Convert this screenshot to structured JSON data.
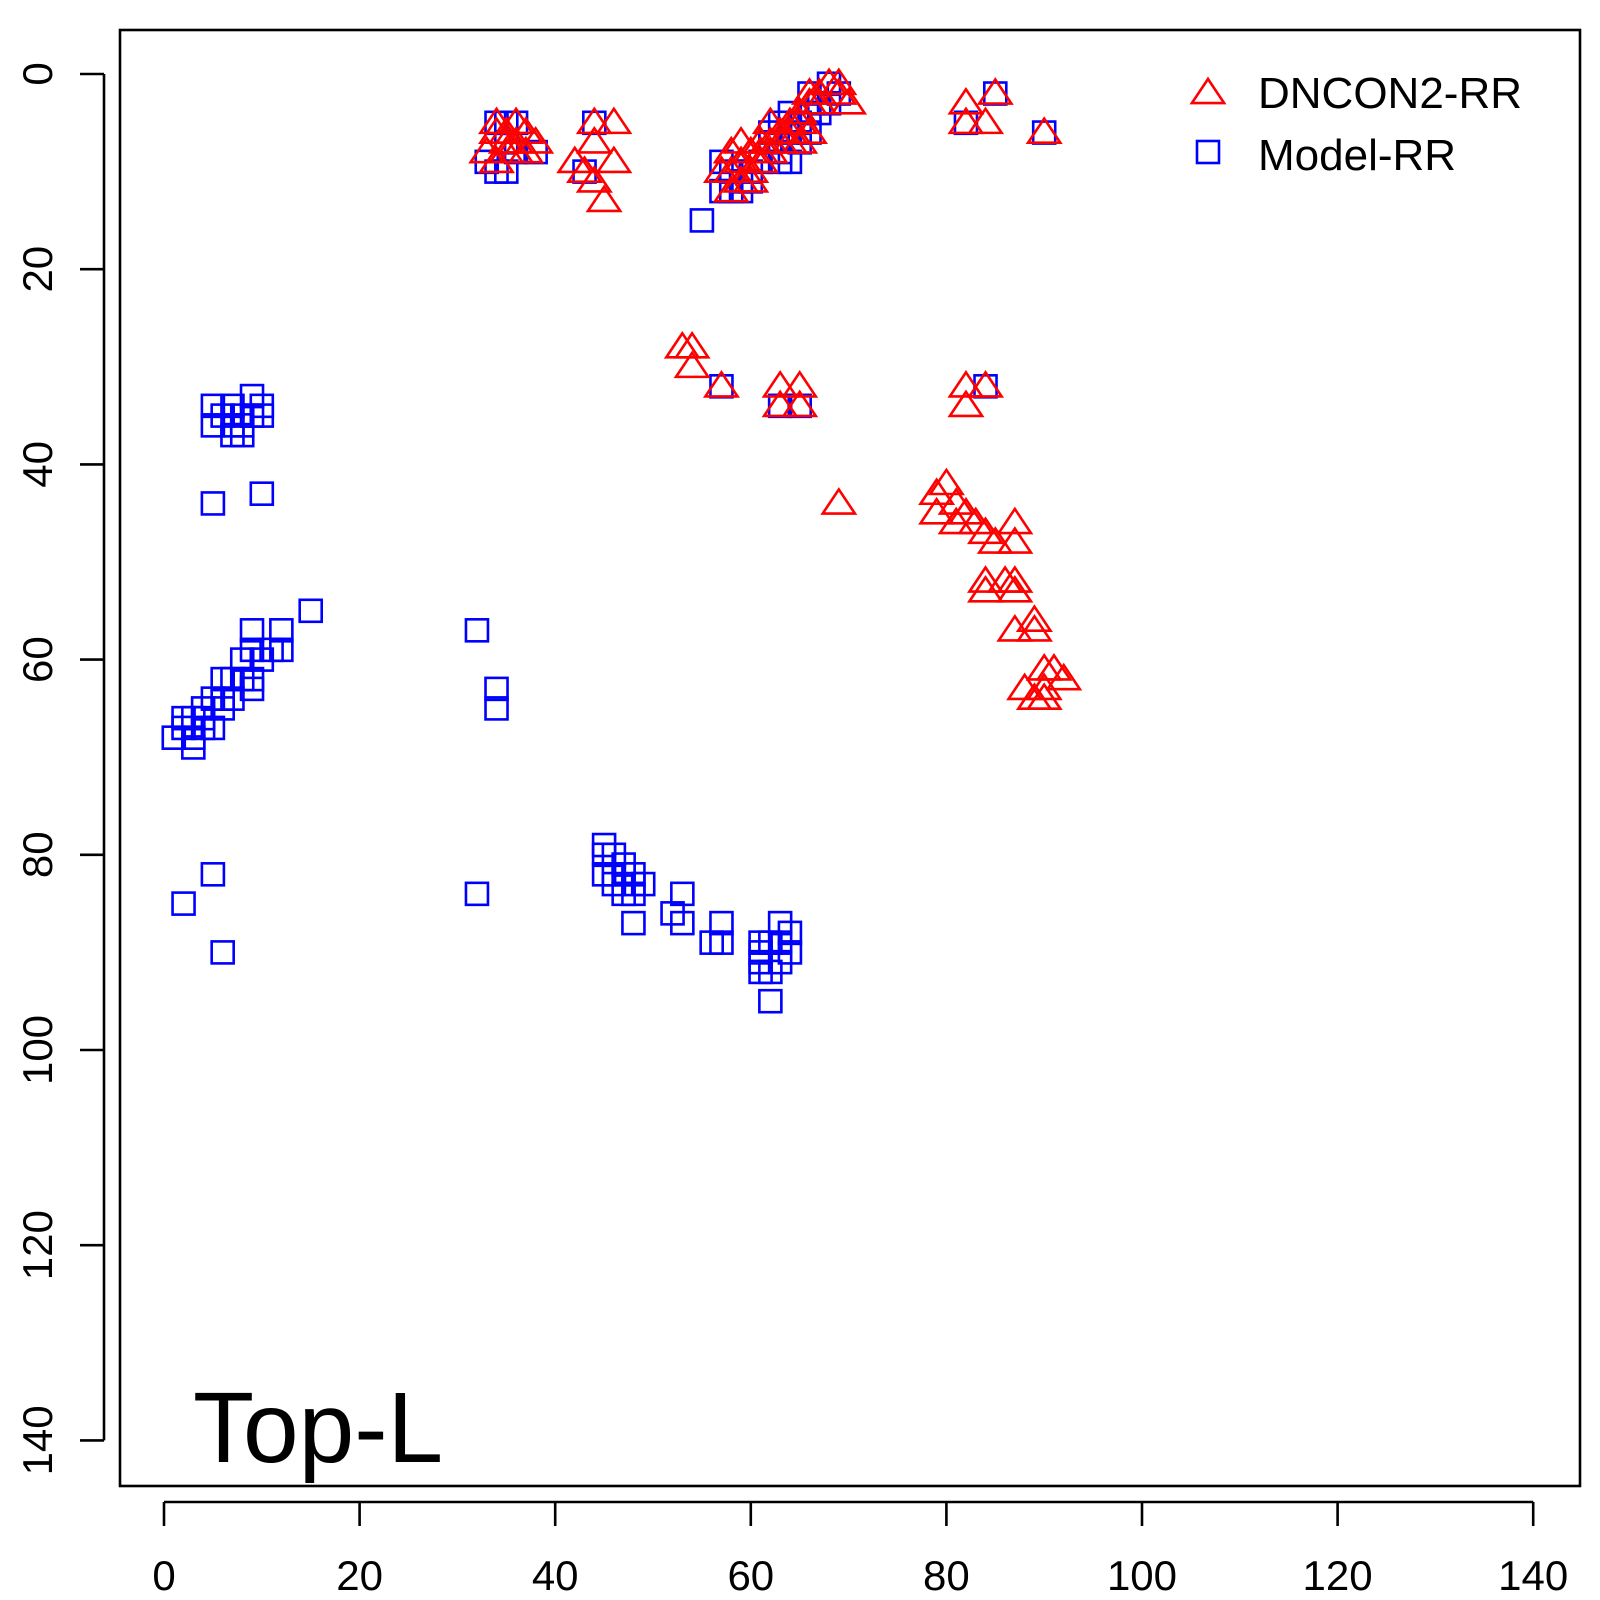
{
  "chart_data": {
    "type": "scatter",
    "title": "",
    "xlabel": "",
    "ylabel": "",
    "annotation": "Top-L",
    "xlim": [
      -2,
      144
    ],
    "ylim": [
      145,
      -6.5
    ],
    "y_reversed": true,
    "grid": false,
    "legend_position": "top-right",
    "x_ticks": [
      "0",
      "20",
      "40",
      "60",
      "80",
      "100",
      "120",
      "140"
    ],
    "y_ticks": [
      "0",
      "20",
      "40",
      "60",
      "80",
      "100",
      "120",
      "140"
    ],
    "series": [
      {
        "name": "DNCON2-RR",
        "marker": "triangle",
        "color": "#ff0000",
        "points": [
          [
            34,
            5
          ],
          [
            35,
            6
          ],
          [
            36,
            5
          ],
          [
            33,
            8
          ],
          [
            34,
            9
          ],
          [
            35,
            8
          ],
          [
            36,
            7
          ],
          [
            37,
            6
          ],
          [
            38,
            7
          ],
          [
            34,
            6
          ],
          [
            35,
            7
          ],
          [
            36,
            8
          ],
          [
            37,
            8
          ],
          [
            44,
            5
          ],
          [
            46,
            5
          ],
          [
            44,
            7
          ],
          [
            42,
            9
          ],
          [
            43,
            10
          ],
          [
            44,
            11
          ],
          [
            46,
            9
          ],
          [
            45,
            13
          ],
          [
            57,
            10
          ],
          [
            58,
            10
          ],
          [
            58,
            8
          ],
          [
            59,
            9
          ],
          [
            59,
            7
          ],
          [
            60,
            8
          ],
          [
            61,
            9
          ],
          [
            60,
            10
          ],
          [
            58,
            12
          ],
          [
            61,
            7
          ],
          [
            62,
            7
          ],
          [
            62,
            8
          ],
          [
            63,
            6
          ],
          [
            63,
            7
          ],
          [
            64,
            5
          ],
          [
            64,
            6
          ],
          [
            65,
            4
          ],
          [
            65,
            5
          ],
          [
            66,
            3
          ],
          [
            66,
            2
          ],
          [
            67,
            2
          ],
          [
            67,
            3
          ],
          [
            68,
            1
          ],
          [
            69,
            1
          ],
          [
            69,
            2
          ],
          [
            70,
            3
          ],
          [
            64,
            7
          ],
          [
            65,
            7
          ],
          [
            66,
            6
          ],
          [
            62,
            5
          ],
          [
            61,
            8
          ],
          [
            60,
            11
          ],
          [
            59,
            11
          ],
          [
            82,
            3
          ],
          [
            82,
            5
          ],
          [
            84,
            5
          ],
          [
            85,
            2
          ],
          [
            90,
            6
          ],
          [
            53,
            28
          ],
          [
            54,
            28
          ],
          [
            54,
            30
          ],
          [
            57,
            32
          ],
          [
            63,
            32
          ],
          [
            65,
            32
          ],
          [
            63,
            34
          ],
          [
            65,
            34
          ],
          [
            82,
            32
          ],
          [
            84,
            32
          ],
          [
            82,
            34
          ],
          [
            69,
            44
          ],
          [
            80,
            42
          ],
          [
            79,
            43
          ],
          [
            79,
            45
          ],
          [
            81,
            44
          ],
          [
            81,
            46
          ],
          [
            82,
            45
          ],
          [
            83,
            46
          ],
          [
            84,
            47
          ],
          [
            85,
            48
          ],
          [
            87,
            46
          ],
          [
            87,
            48
          ],
          [
            84,
            52
          ],
          [
            84,
            53
          ],
          [
            86,
            52
          ],
          [
            87,
            52
          ],
          [
            87,
            53
          ],
          [
            87,
            57
          ],
          [
            89,
            56
          ],
          [
            89,
            57
          ],
          [
            88,
            63
          ],
          [
            90,
            61
          ],
          [
            90,
            63
          ],
          [
            91,
            61
          ],
          [
            92,
            62
          ],
          [
            89,
            64
          ],
          [
            90,
            64
          ]
        ]
      },
      {
        "name": "Model-RR",
        "marker": "square",
        "color": "#0000ff",
        "points": [
          [
            34,
            5
          ],
          [
            35,
            5
          ],
          [
            36,
            5
          ],
          [
            34,
            10
          ],
          [
            35,
            10
          ],
          [
            33,
            9
          ],
          [
            36,
            8
          ],
          [
            38,
            8
          ],
          [
            35,
            7
          ],
          [
            44,
            5
          ],
          [
            43,
            10
          ],
          [
            55,
            15
          ],
          [
            57,
            9
          ],
          [
            57,
            12
          ],
          [
            58,
            12
          ],
          [
            58,
            10
          ],
          [
            59,
            11
          ],
          [
            59,
            12
          ],
          [
            60,
            10
          ],
          [
            60,
            11
          ],
          [
            61,
            9
          ],
          [
            62,
            7
          ],
          [
            62,
            6
          ],
          [
            63,
            8
          ],
          [
            63,
            9
          ],
          [
            64,
            4
          ],
          [
            64,
            9
          ],
          [
            65,
            7
          ],
          [
            66,
            6
          ],
          [
            66,
            2
          ],
          [
            67,
            4
          ],
          [
            68,
            3
          ],
          [
            68,
            1
          ],
          [
            69,
            2
          ],
          [
            63,
            5
          ],
          [
            64,
            6
          ],
          [
            65,
            5
          ],
          [
            66,
            4
          ],
          [
            67,
            3
          ],
          [
            82,
            5
          ],
          [
            85,
            2
          ],
          [
            90,
            6
          ],
          [
            57,
            32
          ],
          [
            63,
            34
          ],
          [
            65,
            34
          ],
          [
            84,
            32
          ],
          [
            5,
            34
          ],
          [
            7,
            34
          ],
          [
            9,
            33
          ],
          [
            10,
            34
          ],
          [
            5,
            36
          ],
          [
            6,
            35
          ],
          [
            7,
            36
          ],
          [
            7,
            37
          ],
          [
            8,
            36
          ],
          [
            8,
            37
          ],
          [
            8,
            35
          ],
          [
            9,
            35
          ],
          [
            10,
            35
          ],
          [
            5,
            44
          ],
          [
            10,
            43
          ],
          [
            15,
            55
          ],
          [
            9,
            57
          ],
          [
            12,
            57
          ],
          [
            9,
            59
          ],
          [
            11,
            59
          ],
          [
            12,
            59
          ],
          [
            10,
            60
          ],
          [
            8,
            60
          ],
          [
            8,
            62
          ],
          [
            9,
            62
          ],
          [
            9,
            63
          ],
          [
            7,
            62
          ],
          [
            6,
            62
          ],
          [
            6,
            64
          ],
          [
            7,
            64
          ],
          [
            5,
            64
          ],
          [
            4,
            65
          ],
          [
            6,
            65
          ],
          [
            4,
            66
          ],
          [
            5,
            67
          ],
          [
            3,
            66
          ],
          [
            2,
            66
          ],
          [
            2,
            67
          ],
          [
            1,
            68
          ],
          [
            3,
            68
          ],
          [
            3,
            69
          ],
          [
            4,
            67
          ],
          [
            32,
            57
          ],
          [
            34,
            63
          ],
          [
            34,
            65
          ],
          [
            2,
            85
          ],
          [
            5,
            82
          ],
          [
            6,
            90
          ],
          [
            32,
            84
          ],
          [
            45,
            79
          ],
          [
            45,
            80
          ],
          [
            46,
            80
          ],
          [
            47,
            81
          ],
          [
            47,
            82
          ],
          [
            46,
            83
          ],
          [
            47,
            84
          ],
          [
            45,
            82
          ],
          [
            46,
            82
          ],
          [
            48,
            82
          ],
          [
            48,
            83
          ],
          [
            49,
            83
          ],
          [
            48,
            84
          ],
          [
            48,
            87
          ],
          [
            52,
            86
          ],
          [
            53,
            84
          ],
          [
            53,
            87
          ],
          [
            56,
            89
          ],
          [
            57,
            89
          ],
          [
            57,
            87
          ],
          [
            61,
            89
          ],
          [
            61,
            90
          ],
          [
            61,
            91
          ],
          [
            61,
            92
          ],
          [
            62,
            89
          ],
          [
            62,
            92
          ],
          [
            62,
            95
          ],
          [
            63,
            87
          ],
          [
            63,
            89
          ],
          [
            63,
            91
          ],
          [
            64,
            88
          ],
          [
            64,
            90
          ]
        ]
      }
    ]
  }
}
